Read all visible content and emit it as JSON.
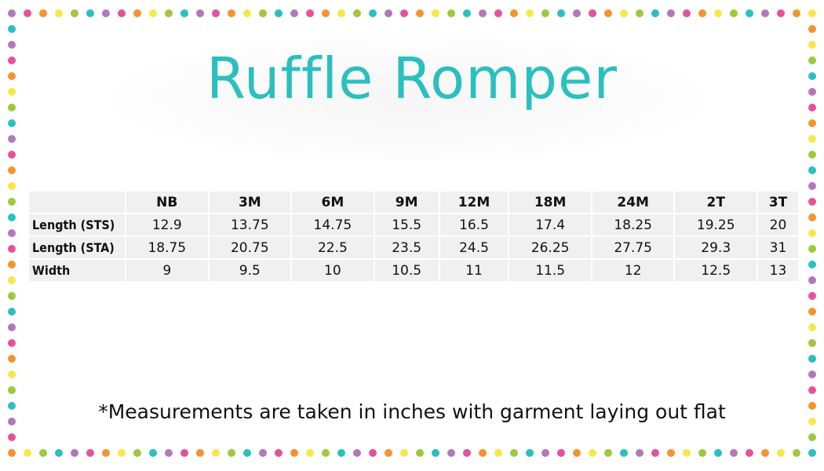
{
  "title": "Ruffle Romper",
  "border_dot_colors": [
    "#b07ab8",
    "#e8509a",
    "#f3942e",
    "#f7e84a",
    "#9fc83e",
    "#2bbfc0"
  ],
  "table": {
    "columns": [
      "",
      "NB",
      "3M",
      "6M",
      "9M",
      "12M",
      "18M",
      "24M",
      "2T",
      "3T"
    ],
    "rows": [
      {
        "label": "Length (STS)",
        "values": [
          "12.9",
          "13.75",
          "14.75",
          "15.5",
          "16.5",
          "17.4",
          "18.25",
          "19.25",
          "20"
        ]
      },
      {
        "label": "Length (STA)",
        "values": [
          "18.75",
          "20.75",
          "22.5",
          "23.5",
          "24.5",
          "26.25",
          "27.75",
          "29.3",
          "31"
        ]
      },
      {
        "label": "Width",
        "values": [
          "9",
          "9.5",
          "10",
          "10.5",
          "11",
          "11.5",
          "12",
          "12.5",
          "13"
        ]
      }
    ]
  },
  "note": "*Measurements are taken in inches with garment laying out flat"
}
